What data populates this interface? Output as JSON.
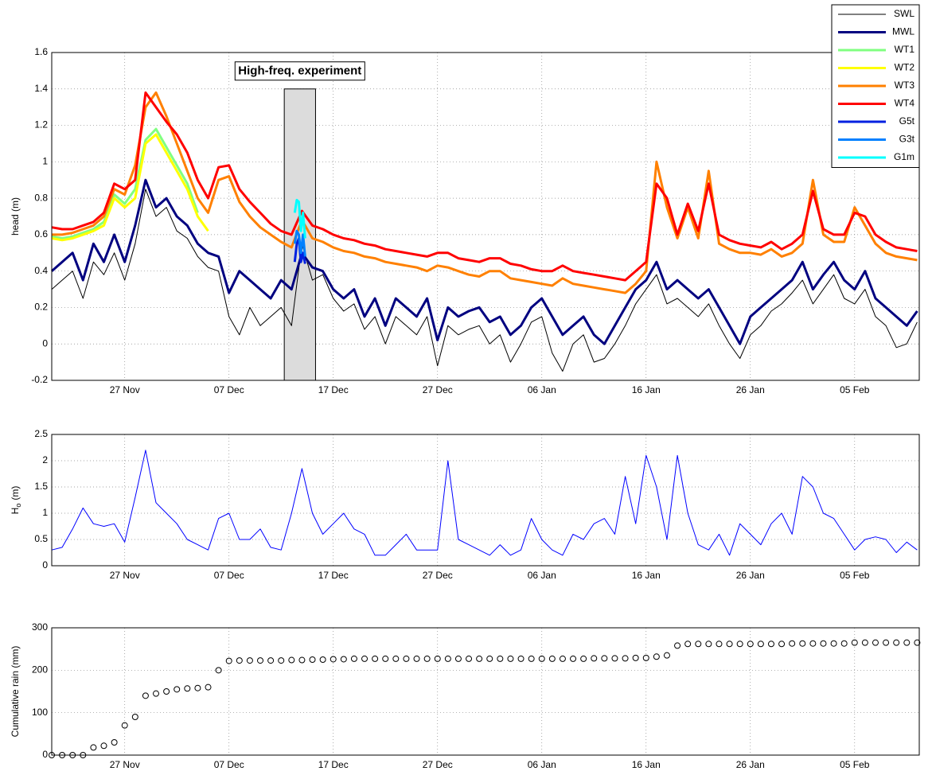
{
  "chart_data": [
    {
      "type": "line",
      "y_label": "head (m)",
      "grid": true,
      "legend": "northeast",
      "xlim": [
        0,
        83.2
      ],
      "xticks": [
        {
          "value": 7,
          "label": "27 Nov"
        },
        {
          "value": 17,
          "label": "07 Dec"
        },
        {
          "value": 27,
          "label": "17 Dec"
        },
        {
          "value": 37,
          "label": "27 Dec"
        },
        {
          "value": 47,
          "label": "06 Jan"
        },
        {
          "value": 57,
          "label": "16 Jan"
        },
        {
          "value": 67,
          "label": "26 Jan"
        },
        {
          "value": 77,
          "label": "05 Feb"
        }
      ],
      "ylim": [
        -0.2,
        1.6
      ],
      "yticks": [
        -0.2,
        0,
        0.2,
        0.4,
        0.6,
        0.8,
        1,
        1.2,
        1.4,
        1.6
      ],
      "annotation": {
        "text": "High-freq. experiment",
        "x": [
          22.3,
          25.3
        ],
        "y": [
          -0.2,
          1.4
        ]
      },
      "x": [
        0,
        1,
        2,
        3,
        4,
        5,
        6,
        7,
        8,
        9,
        10,
        11,
        12,
        13,
        14,
        15,
        16,
        17,
        18,
        19,
        20,
        21,
        22,
        23,
        24,
        25,
        26,
        27,
        28,
        29,
        30,
        31,
        32,
        33,
        34,
        35,
        36,
        37,
        38,
        39,
        40,
        41,
        42,
        43,
        44,
        45,
        46,
        47,
        48,
        49,
        50,
        51,
        52,
        53,
        54,
        55,
        56,
        57,
        58,
        59,
        60,
        61,
        62,
        63,
        64,
        65,
        66,
        67,
        68,
        69,
        70,
        71,
        72,
        73,
        74,
        75,
        76,
        77,
        78,
        79,
        80,
        81,
        82,
        83
      ],
      "series": [
        {
          "name": "SWL",
          "color": "#000000",
          "line_width": 1,
          "values": [
            0.3,
            0.35,
            0.4,
            0.25,
            0.45,
            0.38,
            0.5,
            0.35,
            0.55,
            0.85,
            0.7,
            0.75,
            0.62,
            0.58,
            0.48,
            0.42,
            0.4,
            0.15,
            0.05,
            0.2,
            0.1,
            0.15,
            0.2,
            0.1,
            0.55,
            0.35,
            0.38,
            0.25,
            0.18,
            0.22,
            0.08,
            0.15,
            0.0,
            0.15,
            0.1,
            0.05,
            0.15,
            -0.12,
            0.1,
            0.05,
            0.08,
            0.1,
            0.0,
            0.05,
            -0.1,
            0.0,
            0.12,
            0.15,
            -0.05,
            -0.15,
            0.0,
            0.05,
            -0.1,
            -0.08,
            0.0,
            0.1,
            0.22,
            0.3,
            0.38,
            0.22,
            0.25,
            0.2,
            0.15,
            0.22,
            0.1,
            0.0,
            -0.08,
            0.05,
            0.1,
            0.18,
            0.22,
            0.28,
            0.35,
            0.22,
            0.3,
            0.38,
            0.25,
            0.22,
            0.3,
            0.15,
            0.1,
            -0.02,
            0.0,
            0.12
          ]
        },
        {
          "name": "MWL",
          "color": "#000080",
          "line_width": 3,
          "values": [
            0.4,
            0.45,
            0.5,
            0.35,
            0.55,
            0.45,
            0.6,
            0.45,
            0.65,
            0.9,
            0.75,
            0.8,
            0.7,
            0.65,
            0.55,
            0.5,
            0.48,
            0.28,
            0.4,
            0.35,
            0.3,
            0.25,
            0.35,
            0.3,
            0.5,
            0.42,
            0.4,
            0.3,
            0.25,
            0.3,
            0.15,
            0.25,
            0.1,
            0.25,
            0.2,
            0.15,
            0.25,
            0.02,
            0.2,
            0.15,
            0.18,
            0.2,
            0.12,
            0.15,
            0.05,
            0.1,
            0.2,
            0.25,
            0.15,
            0.05,
            0.1,
            0.15,
            0.05,
            0.0,
            0.1,
            0.2,
            0.3,
            0.35,
            0.45,
            0.3,
            0.35,
            0.3,
            0.25,
            0.3,
            0.2,
            0.1,
            0.0,
            0.15,
            0.2,
            0.25,
            0.3,
            0.35,
            0.45,
            0.3,
            0.38,
            0.45,
            0.35,
            0.3,
            0.4,
            0.25,
            0.2,
            0.15,
            0.1,
            0.18
          ]
        },
        {
          "name": "WT1",
          "color": "#80ff80",
          "line_width": 3,
          "x": [
            0,
            1,
            2,
            3,
            4,
            5,
            6,
            7,
            8,
            9,
            10,
            11,
            12,
            13,
            14
          ],
          "values": [
            0.59,
            0.58,
            0.59,
            0.61,
            0.63,
            0.67,
            0.82,
            0.77,
            0.85,
            1.12,
            1.18,
            1.08,
            0.98,
            0.88,
            0.72
          ]
        },
        {
          "name": "WT2",
          "color": "#ffff00",
          "line_width": 3,
          "x": [
            0,
            1,
            2,
            3,
            4,
            5,
            6,
            7,
            8,
            9,
            10,
            11,
            12,
            13,
            14,
            15
          ],
          "values": [
            0.58,
            0.57,
            0.58,
            0.6,
            0.62,
            0.65,
            0.8,
            0.75,
            0.8,
            1.1,
            1.15,
            1.05,
            0.95,
            0.85,
            0.7,
            0.62
          ]
        },
        {
          "name": "WT3",
          "color": "#ff8000",
          "line_width": 3,
          "values": [
            0.6,
            0.6,
            0.61,
            0.63,
            0.65,
            0.7,
            0.85,
            0.82,
            0.98,
            1.3,
            1.38,
            1.25,
            1.1,
            0.95,
            0.8,
            0.72,
            0.9,
            0.92,
            0.78,
            0.7,
            0.64,
            0.6,
            0.56,
            0.53,
            0.68,
            0.58,
            0.56,
            0.53,
            0.51,
            0.5,
            0.48,
            0.47,
            0.45,
            0.44,
            0.43,
            0.42,
            0.4,
            0.43,
            0.42,
            0.4,
            0.38,
            0.37,
            0.4,
            0.4,
            0.36,
            0.35,
            0.34,
            0.33,
            0.32,
            0.36,
            0.33,
            0.32,
            0.31,
            0.3,
            0.29,
            0.28,
            0.33,
            0.4,
            1.0,
            0.75,
            0.58,
            0.75,
            0.58,
            0.95,
            0.55,
            0.52,
            0.5,
            0.5,
            0.49,
            0.52,
            0.48,
            0.5,
            0.55,
            0.9,
            0.6,
            0.56,
            0.56,
            0.75,
            0.65,
            0.55,
            0.5,
            0.48,
            0.47,
            0.46
          ]
        },
        {
          "name": "WT4",
          "color": "#ff0000",
          "line_width": 3,
          "values": [
            0.64,
            0.63,
            0.63,
            0.65,
            0.67,
            0.72,
            0.88,
            0.85,
            0.9,
            1.38,
            1.3,
            1.22,
            1.15,
            1.05,
            0.9,
            0.8,
            0.97,
            0.98,
            0.85,
            0.78,
            0.72,
            0.66,
            0.62,
            0.6,
            0.73,
            0.65,
            0.63,
            0.6,
            0.58,
            0.57,
            0.55,
            0.54,
            0.52,
            0.51,
            0.5,
            0.49,
            0.48,
            0.5,
            0.5,
            0.47,
            0.46,
            0.45,
            0.47,
            0.47,
            0.44,
            0.43,
            0.41,
            0.4,
            0.4,
            0.43,
            0.4,
            0.39,
            0.38,
            0.37,
            0.36,
            0.35,
            0.4,
            0.45,
            0.88,
            0.8,
            0.6,
            0.77,
            0.62,
            0.88,
            0.6,
            0.57,
            0.55,
            0.54,
            0.53,
            0.56,
            0.52,
            0.55,
            0.6,
            0.84,
            0.63,
            0.6,
            0.6,
            0.72,
            0.7,
            0.6,
            0.56,
            0.53,
            0.52,
            0.51
          ]
        },
        {
          "name": "G5t",
          "color": "#0020e0",
          "line_width": 3,
          "x": [
            23.3,
            23.5,
            23.7,
            23.9,
            24.1,
            24.3
          ],
          "values": [
            0.45,
            0.55,
            0.58,
            0.45,
            0.5,
            0.44
          ]
        },
        {
          "name": "G3t",
          "color": "#0080ff",
          "line_width": 3,
          "x": [
            23.3,
            23.5,
            23.7,
            23.9,
            24.1,
            24.3
          ],
          "values": [
            0.55,
            0.62,
            0.6,
            0.5,
            0.6,
            0.48
          ]
        },
        {
          "name": "G1m",
          "color": "#00ffff",
          "line_width": 3,
          "x": [
            23.3,
            23.5,
            23.7,
            23.9,
            24.1,
            24.3
          ],
          "values": [
            0.72,
            0.79,
            0.78,
            0.62,
            0.72,
            0.58
          ]
        }
      ]
    },
    {
      "type": "line",
      "y_label": "H",
      "y_label_subscript": "o",
      "y_label_unit": "(m)",
      "grid": true,
      "xlim": [
        0,
        83.2
      ],
      "xticks": [
        {
          "value": 7,
          "label": "27 Nov"
        },
        {
          "value": 17,
          "label": "07 Dec"
        },
        {
          "value": 27,
          "label": "17 Dec"
        },
        {
          "value": 37,
          "label": "27 Dec"
        },
        {
          "value": 47,
          "label": "06 Jan"
        },
        {
          "value": 57,
          "label": "16 Jan"
        },
        {
          "value": 67,
          "label": "26 Jan"
        },
        {
          "value": 77,
          "label": "05 Feb"
        }
      ],
      "ylim": [
        0,
        2.5
      ],
      "yticks": [
        0,
        0.5,
        1,
        1.5,
        2,
        2.5
      ],
      "x": [
        0,
        1,
        2,
        3,
        4,
        5,
        6,
        7,
        8,
        9,
        10,
        11,
        12,
        13,
        14,
        15,
        16,
        17,
        18,
        19,
        20,
        21,
        22,
        23,
        24,
        25,
        26,
        27,
        28,
        29,
        30,
        31,
        32,
        33,
        34,
        35,
        36,
        37,
        38,
        39,
        40,
        41,
        42,
        43,
        44,
        45,
        46,
        47,
        48,
        49,
        50,
        51,
        52,
        53,
        54,
        55,
        56,
        57,
        58,
        59,
        60,
        61,
        62,
        63,
        64,
        65,
        66,
        67,
        68,
        69,
        70,
        71,
        72,
        73,
        74,
        75,
        76,
        77,
        78,
        79,
        80,
        81,
        82,
        83
      ],
      "series": [
        {
          "color": "#0000ff",
          "line_width": 1,
          "values": [
            0.3,
            0.35,
            0.7,
            1.1,
            0.8,
            0.75,
            0.8,
            0.45,
            1.3,
            2.2,
            1.2,
            1.0,
            0.8,
            0.5,
            0.4,
            0.3,
            0.9,
            1.0,
            0.5,
            0.5,
            0.7,
            0.35,
            0.3,
            1.0,
            1.85,
            1.0,
            0.6,
            0.8,
            1.0,
            0.7,
            0.6,
            0.2,
            0.2,
            0.4,
            0.6,
            0.3,
            0.3,
            0.3,
            2.0,
            0.5,
            0.4,
            0.3,
            0.2,
            0.4,
            0.2,
            0.3,
            0.9,
            0.5,
            0.3,
            0.2,
            0.6,
            0.5,
            0.8,
            0.9,
            0.6,
            1.7,
            0.8,
            2.1,
            1.5,
            0.5,
            2.1,
            1.0,
            0.4,
            0.3,
            0.6,
            0.2,
            0.8,
            0.6,
            0.4,
            0.8,
            1.0,
            0.6,
            1.7,
            1.5,
            1.0,
            0.9,
            0.6,
            0.3,
            0.5,
            0.55,
            0.5,
            0.25,
            0.45,
            0.3
          ]
        }
      ]
    },
    {
      "type": "scatter",
      "y_label": "Cumulative rain (mm)",
      "grid": true,
      "marker_color": "#000000",
      "xlim": [
        0,
        83.2
      ],
      "xticks": [
        {
          "value": 7,
          "label": "27 Nov"
        },
        {
          "value": 17,
          "label": "07 Dec"
        },
        {
          "value": 27,
          "label": "17 Dec"
        },
        {
          "value": 37,
          "label": "27 Dec"
        },
        {
          "value": 47,
          "label": "06 Jan"
        },
        {
          "value": 57,
          "label": "16 Jan"
        },
        {
          "value": 67,
          "label": "26 Jan"
        },
        {
          "value": 77,
          "label": "05 Feb"
        }
      ],
      "ylim": [
        0,
        300
      ],
      "yticks": [
        0,
        100,
        200,
        300
      ],
      "x": [
        0,
        1,
        2,
        3,
        4,
        5,
        6,
        7,
        8,
        9,
        10,
        11,
        12,
        13,
        14,
        15,
        16,
        17,
        18,
        19,
        20,
        21,
        22,
        23,
        24,
        25,
        26,
        27,
        28,
        29,
        30,
        31,
        32,
        33,
        34,
        35,
        36,
        37,
        38,
        39,
        40,
        41,
        42,
        43,
        44,
        45,
        46,
        47,
        48,
        49,
        50,
        51,
        52,
        53,
        54,
        55,
        56,
        57,
        58,
        59,
        60,
        61,
        62,
        63,
        64,
        65,
        66,
        67,
        68,
        69,
        70,
        71,
        72,
        73,
        74,
        75,
        76,
        77,
        78,
        79,
        80,
        81,
        82,
        83
      ],
      "values": [
        0,
        0,
        0,
        0,
        18,
        22,
        30,
        70,
        90,
        140,
        145,
        150,
        155,
        157,
        158,
        160,
        200,
        222,
        223,
        223,
        223,
        223,
        223,
        224,
        224,
        225,
        225,
        226,
        226,
        227,
        227,
        227,
        227,
        227,
        227,
        227,
        227,
        227,
        227,
        227,
        227,
        227,
        227,
        227,
        227,
        227,
        227,
        227,
        227,
        227,
        227,
        227,
        228,
        228,
        228,
        228,
        229,
        229,
        232,
        235,
        258,
        262,
        262,
        262,
        262,
        262,
        262,
        262,
        262,
        262,
        262,
        263,
        263,
        263,
        263,
        263,
        263,
        265,
        265,
        265,
        265,
        265,
        265,
        265
      ]
    }
  ]
}
